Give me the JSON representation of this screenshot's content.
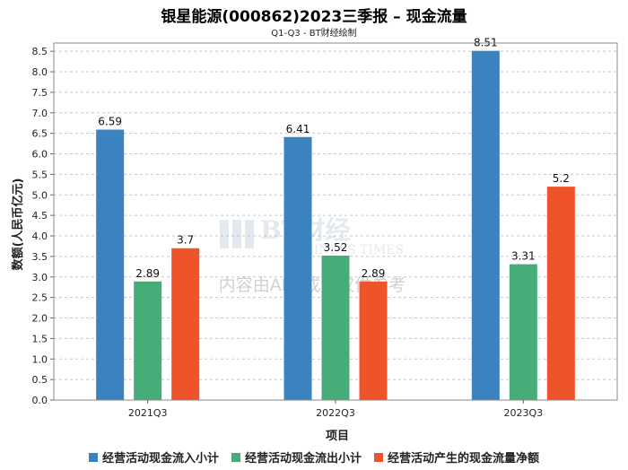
{
  "chart_data": {
    "type": "bar",
    "title": "银星能源(000862)2023三季报 – 现金流量",
    "subtitle": "Q1-Q3 - BT财经绘制",
    "xlabel": "项目",
    "ylabel": "数额(人民币亿元)",
    "categories": [
      "2021Q3",
      "2022Q3",
      "2023Q3"
    ],
    "ylim": [
      0,
      8.7
    ],
    "yticks": [
      0.0,
      0.5,
      1.0,
      1.5,
      2.0,
      2.5,
      3.0,
      3.5,
      4.0,
      4.5,
      5.0,
      5.5,
      6.0,
      6.5,
      7.0,
      7.5,
      8.0,
      8.5
    ],
    "grid": true,
    "legend_position": "bottom",
    "series": [
      {
        "name": "经营活动现金流入小计",
        "color": "#3a82c0",
        "values": [
          6.59,
          6.41,
          8.51
        ],
        "labels": [
          "6.59",
          "6.41",
          "8.51"
        ]
      },
      {
        "name": "经营活动现金流出小计",
        "color": "#47ad78",
        "values": [
          2.89,
          3.52,
          3.31
        ],
        "labels": [
          "2.89",
          "3.52",
          "3.31"
        ]
      },
      {
        "name": "经营活动产生的现金流量净额",
        "color": "#ef5329",
        "values": [
          3.7,
          2.89,
          5.2
        ],
        "labels": [
          "3.7",
          "2.89",
          "5.2"
        ]
      }
    ],
    "watermark": {
      "brand": "BT财经",
      "brand_en": "BUSINESS TIMES",
      "note": "内容由AI生成，仅供参考"
    }
  }
}
